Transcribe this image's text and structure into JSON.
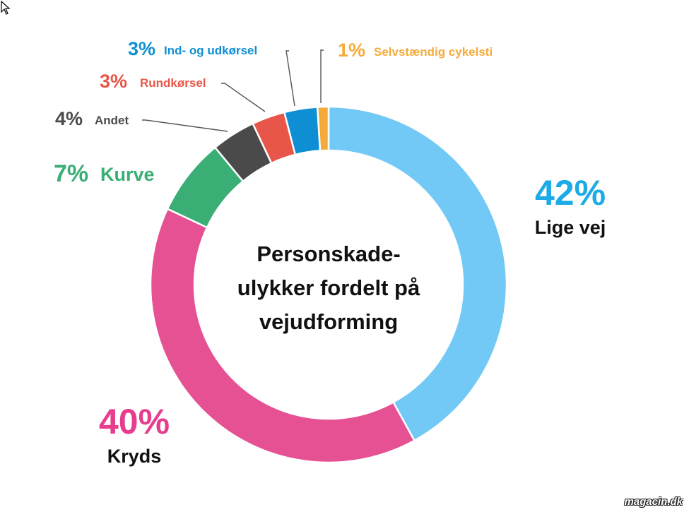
{
  "chart_data": {
    "type": "pie",
    "title_lines": [
      "Personskade-",
      "ulykker fordelt på",
      "vejudforming"
    ],
    "slices": [
      {
        "label": "Lige vej",
        "percent_text": "42%",
        "value": 42,
        "color": "#72c9f5"
      },
      {
        "label": "Kryds",
        "percent_text": "40%",
        "value": 40,
        "color": "#e65193"
      },
      {
        "label": "Kurve",
        "percent_text": "7%",
        "value": 7,
        "color": "#3aae74"
      },
      {
        "label": "Andet",
        "percent_text": "4%",
        "value": 4,
        "color": "#4a4a4a"
      },
      {
        "label": "Rundkørsel",
        "percent_text": "3%",
        "value": 3,
        "color": "#e8564a"
      },
      {
        "label": "Ind- og udkørsel",
        "percent_text": "3%",
        "value": 3,
        "color": "#0e8fd4"
      },
      {
        "label": "Selvstændig cykelsti",
        "percent_text": "1%",
        "value": 1,
        "color": "#f5ab3c"
      }
    ]
  },
  "watermark": "magacin.dk"
}
